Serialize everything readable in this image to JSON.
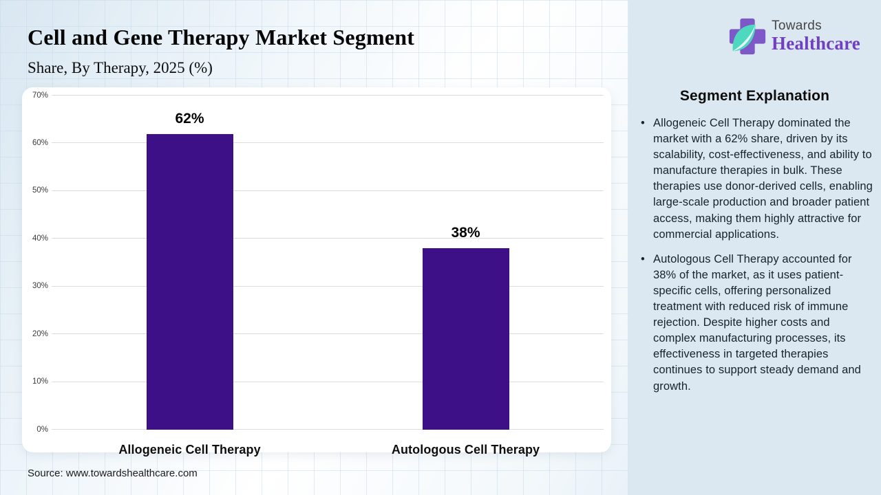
{
  "header": {
    "title": "Cell and Gene Therapy Market Segment",
    "subtitle": "Share, By Therapy, 2025 (%)"
  },
  "logo": {
    "line1": "Towards",
    "line2": "Healthcare"
  },
  "source": "Source: www.towardshealthcare.com",
  "panel": {
    "heading": "Segment Explanation",
    "bullets": [
      "Allogeneic Cell Therapy dominated the market with a 62% share, driven by its scalability, cost-effectiveness, and ability to manufacture therapies in bulk. These therapies use donor-derived cells, enabling large-scale production and broader patient access, making them highly attractive for commercial applications.",
      "Autologous Cell Therapy accounted for 38% of the market, as it uses patient-specific cells, offering personalized treatment with reduced risk of immune rejection. Despite higher costs and complex manufacturing processes, its effectiveness in targeted therapies continues to support steady demand and growth."
    ]
  },
  "chart_data": {
    "type": "bar",
    "title": "Cell and Gene Therapy Market Segment Share, By Therapy, 2025 (%)",
    "categories": [
      "Allogeneic Cell Therapy",
      "Autologous Cell Therapy"
    ],
    "values": [
      62,
      38
    ],
    "value_labels": [
      "62%",
      "38%"
    ],
    "xlabel": "",
    "ylabel": "",
    "ylim": [
      0,
      70
    ],
    "ytick_values": [
      0,
      10,
      20,
      30,
      40,
      50,
      60,
      70
    ],
    "ytick_labels": [
      "0%",
      "10%",
      "20%",
      "30%",
      "40%",
      "50%",
      "60%",
      "70%"
    ],
    "grid": true,
    "legend": "none",
    "bar_color": "#3d1088"
  },
  "colors": {
    "bar": "#3d1088",
    "panel_bg": "#dce8f1",
    "brand_purple": "#7040c0",
    "brand_cross_purple": "#7e57c8",
    "brand_leaf_teal": "#4fd8c0"
  }
}
